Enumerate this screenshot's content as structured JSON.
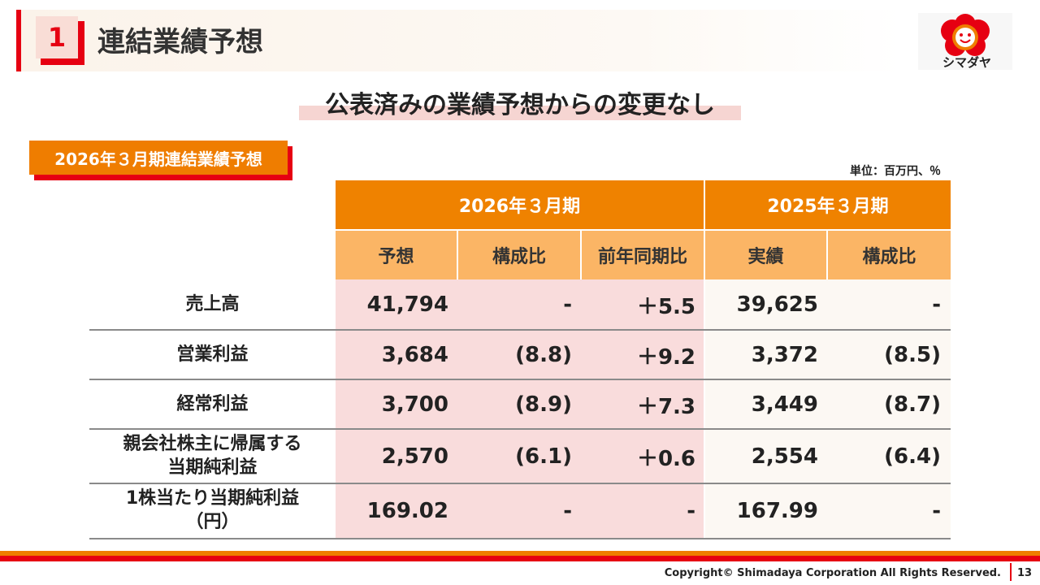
{
  "header": {
    "section_number": "1",
    "title": "連結業績予想",
    "logo_text": "シマダヤ"
  },
  "subtitle": "公表済みの業績予想からの変更なし",
  "section_tag": "2026年３月期連結業績予想",
  "unit": "単位：百万円、％",
  "table": {
    "group_headers": [
      "2026年３月期",
      "2025年３月期"
    ],
    "sub_headers": [
      "予想",
      "構成比",
      "前年同期比",
      "実績",
      "構成比"
    ],
    "rows": [
      {
        "label_line1": "売上高",
        "label_line2": "",
        "values": [
          "41,794",
          "-",
          "＋5.5",
          "39,625",
          "-"
        ]
      },
      {
        "label_line1": "営業利益",
        "label_line2": "",
        "values": [
          "3,684",
          "(8.8)",
          "＋9.2",
          "3,372",
          "(8.5)"
        ]
      },
      {
        "label_line1": "経常利益",
        "label_line2": "",
        "values": [
          "3,700",
          "(8.9)",
          "＋7.3",
          "3,449",
          "(8.7)"
        ]
      },
      {
        "label_line1": "親会社株主に帰属する",
        "label_line2": "当期純利益",
        "values": [
          "2,570",
          "(6.1)",
          "＋0.6",
          "2,554",
          "(6.4)"
        ]
      },
      {
        "label_line1": "1株当たり当期純利益",
        "label_line2": "（円）",
        "values": [
          "169.02",
          "-",
          "-",
          "167.99",
          "-"
        ]
      }
    ]
  },
  "footer": {
    "copyright": "Copyright© Shimadaya Corporation All Rights Reserved.",
    "page_number": "13"
  },
  "colors": {
    "brand_red": "#e60012",
    "brand_orange": "#ef7d00",
    "header_orange": "#ef8200",
    "subheader_orange": "#fbb565",
    "forecast_pink": "#f9dcdc",
    "actual_cream": "#fcf8f3"
  }
}
